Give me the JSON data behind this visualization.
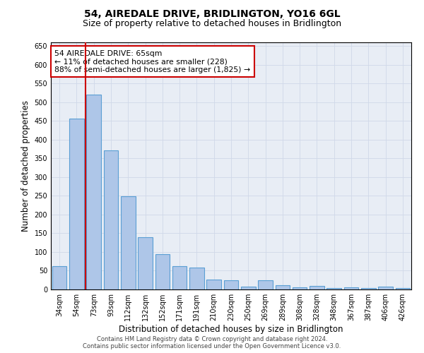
{
  "title": "54, AIREDALE DRIVE, BRIDLINGTON, YO16 6GL",
  "subtitle": "Size of property relative to detached houses in Bridlington",
  "xlabel": "Distribution of detached houses by size in Bridlington",
  "ylabel": "Number of detached properties",
  "categories": [
    "34sqm",
    "54sqm",
    "73sqm",
    "93sqm",
    "112sqm",
    "132sqm",
    "152sqm",
    "171sqm",
    "191sqm",
    "210sqm",
    "230sqm",
    "250sqm",
    "269sqm",
    "289sqm",
    "308sqm",
    "328sqm",
    "348sqm",
    "367sqm",
    "387sqm",
    "406sqm",
    "426sqm"
  ],
  "values": [
    62,
    457,
    521,
    371,
    248,
    140,
    95,
    62,
    58,
    26,
    25,
    8,
    25,
    12,
    5,
    9,
    3,
    5,
    4,
    8,
    4
  ],
  "bar_color": "#aec6e8",
  "bar_edge_color": "#5a9fd4",
  "vline_x": 1.5,
  "vline_color": "#cc0000",
  "annotation_text": "54 AIREDALE DRIVE: 65sqm\n← 11% of detached houses are smaller (228)\n88% of semi-detached houses are larger (1,825) →",
  "annotation_box_color": "#ffffff",
  "annotation_box_edge": "#cc0000",
  "ylim": [
    0,
    660
  ],
  "yticks": [
    0,
    50,
    100,
    150,
    200,
    250,
    300,
    350,
    400,
    450,
    500,
    550,
    600,
    650
  ],
  "grid_color": "#d0d8e8",
  "background_color": "#e8edf5",
  "footer_line1": "Contains HM Land Registry data © Crown copyright and database right 2024.",
  "footer_line2": "Contains public sector information licensed under the Open Government Licence v3.0.",
  "title_fontsize": 10,
  "subtitle_fontsize": 9,
  "tick_fontsize": 7,
  "ylabel_fontsize": 8.5,
  "xlabel_fontsize": 8.5,
  "annotation_fontsize": 7.8,
  "footer_fontsize": 6.0
}
